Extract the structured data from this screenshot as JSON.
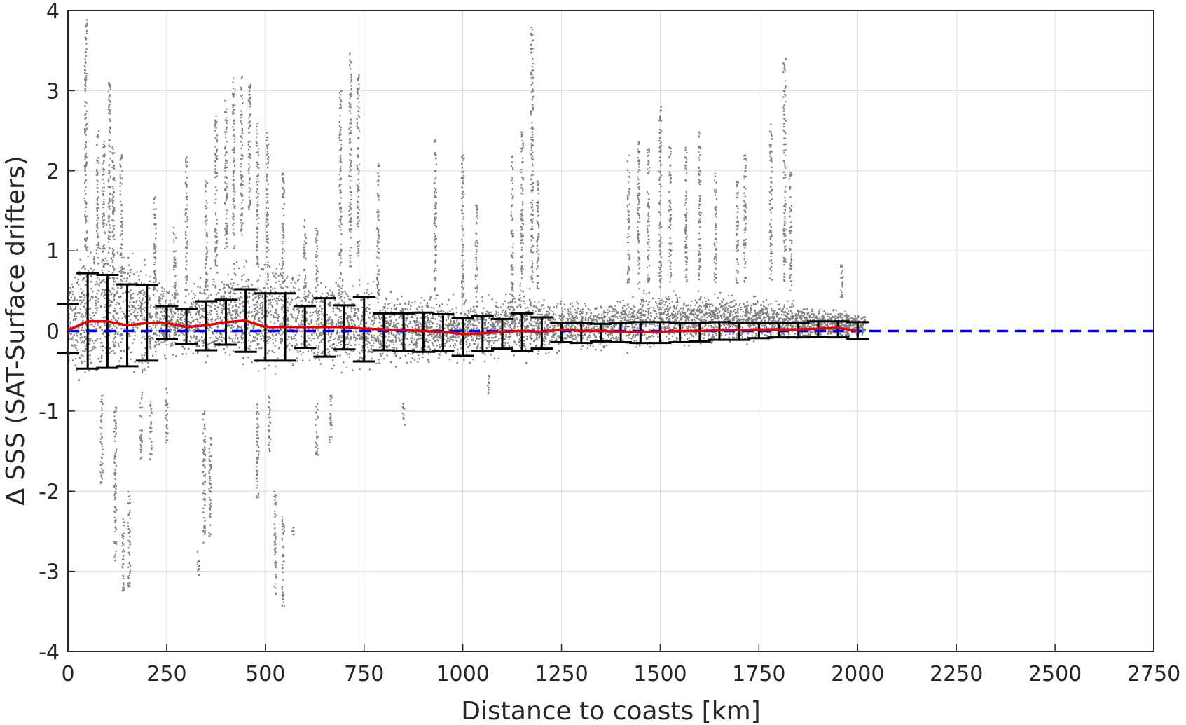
{
  "chart_data": {
    "type": "scatter",
    "xlabel": "Distance to coasts [km]",
    "ylabel": "Δ SSS (SAT-Surface drifters)",
    "xlim": [
      0,
      2750
    ],
    "ylim": [
      -4,
      4
    ],
    "x_ticks": [
      "0",
      "250",
      "500",
      "750",
      "1000",
      "1250",
      "1500",
      "1750",
      "2000",
      "2250",
      "2500",
      "2750"
    ],
    "y_ticks": [
      "4",
      "3",
      "2",
      "1",
      "0",
      "-1",
      "-2",
      "-3",
      "-4"
    ],
    "grid": true,
    "colors": {
      "scatter": "#808080",
      "errorbar": "#000000",
      "mean_line": "#e00000",
      "zero_line": "#0000e6",
      "grid": "#dcdcdc",
      "axes": "#262626"
    },
    "series": [
      {
        "kind": "errorbar",
        "x": [
          0,
          50,
          100,
          150,
          200,
          250,
          300,
          350,
          400,
          450,
          500,
          550,
          600,
          650,
          700,
          750,
          800,
          850,
          900,
          950,
          1000,
          1050,
          1100,
          1150,
          1200,
          1250,
          1300,
          1350,
          1400,
          1450,
          1500,
          1550,
          1600,
          1650,
          1700,
          1750,
          1800,
          1850,
          1900,
          1950,
          2000
        ],
        "mean": [
          0.01,
          0.12,
          0.12,
          0.07,
          0.1,
          0.1,
          0.05,
          0.07,
          0.11,
          0.13,
          0.05,
          0.05,
          0.05,
          0.05,
          0.05,
          0.03,
          0.02,
          0.01,
          0.0,
          -0.01,
          -0.04,
          -0.03,
          -0.01,
          0.0,
          -0.01,
          0.02,
          0.0,
          0.0,
          -0.01,
          -0.01,
          -0.01,
          0.0,
          0.0,
          0.01,
          0.01,
          0.02,
          0.02,
          0.02,
          0.03,
          0.04,
          0.0
        ],
        "upper": [
          0.34,
          0.72,
          0.7,
          0.58,
          0.57,
          0.31,
          0.28,
          0.37,
          0.39,
          0.52,
          0.47,
          0.47,
          0.31,
          0.41,
          0.32,
          0.42,
          0.22,
          0.22,
          0.23,
          0.21,
          0.16,
          0.19,
          0.15,
          0.22,
          0.17,
          0.1,
          0.1,
          0.09,
          0.1,
          0.11,
          0.11,
          0.1,
          0.1,
          0.11,
          0.1,
          0.1,
          0.1,
          0.1,
          0.12,
          0.12,
          0.11
        ],
        "lower": [
          -0.28,
          -0.47,
          -0.46,
          -0.44,
          -0.37,
          -0.1,
          -0.16,
          -0.24,
          -0.17,
          -0.26,
          -0.37,
          -0.37,
          -0.21,
          -0.32,
          -0.23,
          -0.38,
          -0.24,
          -0.25,
          -0.26,
          -0.25,
          -0.31,
          -0.25,
          -0.22,
          -0.25,
          -0.22,
          -0.14,
          -0.15,
          -0.13,
          -0.14,
          -0.15,
          -0.15,
          -0.14,
          -0.13,
          -0.11,
          -0.11,
          -0.09,
          -0.08,
          -0.08,
          -0.07,
          -0.08,
          -0.1
        ]
      },
      {
        "kind": "line",
        "style": "dashed",
        "x": [
          0,
          2750
        ],
        "y": [
          0,
          0
        ]
      }
    ],
    "scatter_spread": {
      "x": [
        0,
        50,
        100,
        150,
        200,
        250,
        300,
        350,
        400,
        450,
        500,
        550,
        600,
        650,
        700,
        750,
        800,
        850,
        900,
        950,
        1000,
        1050,
        1100,
        1150,
        1200,
        1250,
        1300,
        1350,
        1400,
        1450,
        1500,
        1550,
        1600,
        1650,
        1700,
        1750,
        1800,
        1850,
        1900,
        1950,
        2000
      ],
      "upper": [
        0.9,
        1.4,
        1.5,
        1.3,
        1.0,
        0.7,
        0.7,
        0.9,
        1.0,
        1.1,
        1.0,
        1.0,
        0.8,
        0.9,
        0.7,
        0.8,
        0.55,
        0.55,
        0.55,
        0.5,
        0.45,
        0.5,
        0.55,
        0.7,
        0.5,
        0.45,
        0.45,
        0.45,
        0.5,
        0.55,
        0.6,
        0.6,
        0.6,
        0.55,
        0.5,
        0.5,
        0.45,
        0.4,
        0.35,
        0.3,
        0.25
      ],
      "lower": [
        -0.6,
        -0.9,
        -0.9,
        -0.8,
        -0.7,
        -0.45,
        -0.5,
        -0.6,
        -0.55,
        -0.6,
        -0.7,
        -0.7,
        -0.55,
        -0.65,
        -0.55,
        -0.7,
        -0.5,
        -0.5,
        -0.5,
        -0.45,
        -0.5,
        -0.45,
        -0.4,
        -0.45,
        -0.4,
        -0.3,
        -0.3,
        -0.28,
        -0.3,
        -0.3,
        -0.3,
        -0.28,
        -0.25,
        -0.25,
        -0.22,
        -0.2,
        -0.18,
        -0.16,
        -0.15,
        -0.13,
        -0.12
      ],
      "streaks": [
        {
          "x": 45,
          "y0": 1.0,
          "y1": 3.9
        },
        {
          "x": 75,
          "y0": 0.9,
          "y1": 2.5
        },
        {
          "x": 90,
          "y0": 0.8,
          "y1": 2.4
        },
        {
          "x": 105,
          "y0": 0.9,
          "y1": 3.1
        },
        {
          "x": 115,
          "y0": 0.5,
          "y1": 2.3
        },
        {
          "x": 135,
          "y0": 0.5,
          "y1": 2.2
        },
        {
          "x": 220,
          "y0": 0.5,
          "y1": 1.7
        },
        {
          "x": 270,
          "y0": 0.4,
          "y1": 1.3
        },
        {
          "x": 300,
          "y0": 0.6,
          "y1": 2.2
        },
        {
          "x": 350,
          "y0": 0.5,
          "y1": 1.9
        },
        {
          "x": 375,
          "y0": 0.8,
          "y1": 2.7
        },
        {
          "x": 400,
          "y0": 1.0,
          "y1": 2.9
        },
        {
          "x": 420,
          "y0": 1.0,
          "y1": 3.2
        },
        {
          "x": 440,
          "y0": 1.2,
          "y1": 3.2
        },
        {
          "x": 460,
          "y0": 1.5,
          "y1": 3.15
        },
        {
          "x": 480,
          "y0": 0.8,
          "y1": 2.6
        },
        {
          "x": 505,
          "y0": 0.6,
          "y1": 2.5
        },
        {
          "x": 545,
          "y0": 0.5,
          "y1": 2.0
        },
        {
          "x": 600,
          "y0": 0.4,
          "y1": 1.4
        },
        {
          "x": 630,
          "y0": 0.5,
          "y1": 1.3
        },
        {
          "x": 690,
          "y0": 0.4,
          "y1": 3.0
        },
        {
          "x": 715,
          "y0": 0.8,
          "y1": 3.5
        },
        {
          "x": 735,
          "y0": 0.9,
          "y1": 3.2
        },
        {
          "x": 785,
          "y0": 0.4,
          "y1": 2.1
        },
        {
          "x": 930,
          "y0": 0.4,
          "y1": 2.4
        },
        {
          "x": 1000,
          "y0": 0.4,
          "y1": 2.2
        },
        {
          "x": 1035,
          "y0": 0.4,
          "y1": 1.6
        },
        {
          "x": 1125,
          "y0": 0.5,
          "y1": 2.2
        },
        {
          "x": 1150,
          "y0": 0.5,
          "y1": 2.5
        },
        {
          "x": 1175,
          "y0": 0.6,
          "y1": 3.8
        },
        {
          "x": 1190,
          "y0": 0.5,
          "y1": 1.9
        },
        {
          "x": 1420,
          "y0": 0.6,
          "y1": 2.2
        },
        {
          "x": 1445,
          "y0": 0.5,
          "y1": 2.4
        },
        {
          "x": 1470,
          "y0": 0.6,
          "y1": 2.3
        },
        {
          "x": 1500,
          "y0": 0.6,
          "y1": 2.8
        },
        {
          "x": 1525,
          "y0": 0.6,
          "y1": 2.3
        },
        {
          "x": 1565,
          "y0": 0.6,
          "y1": 2.3
        },
        {
          "x": 1600,
          "y0": 0.6,
          "y1": 2.5
        },
        {
          "x": 1640,
          "y0": 0.6,
          "y1": 2.0
        },
        {
          "x": 1695,
          "y0": 0.6,
          "y1": 1.9
        },
        {
          "x": 1715,
          "y0": 0.6,
          "y1": 2.2
        },
        {
          "x": 1780,
          "y0": 0.6,
          "y1": 2.6
        },
        {
          "x": 1815,
          "y0": 0.6,
          "y1": 3.4
        },
        {
          "x": 1830,
          "y0": 0.5,
          "y1": 2.0
        },
        {
          "x": 1960,
          "y0": 0.4,
          "y1": 0.9
        },
        {
          "x": 120,
          "y0": -2.9,
          "y1": -0.9
        },
        {
          "x": 140,
          "y0": -3.25,
          "y1": -2.3
        },
        {
          "x": 155,
          "y0": -3.2,
          "y1": -2.0
        },
        {
          "x": 185,
          "y0": -1.6,
          "y1": -0.7
        },
        {
          "x": 210,
          "y0": -1.6,
          "y1": -0.8
        },
        {
          "x": 250,
          "y0": -1.4,
          "y1": -0.7
        },
        {
          "x": 330,
          "y0": -3.05,
          "y1": -2.75
        },
        {
          "x": 345,
          "y0": -2.7,
          "y1": -1.0
        },
        {
          "x": 360,
          "y0": -2.6,
          "y1": -1.3
        },
        {
          "x": 480,
          "y0": -2.2,
          "y1": -0.9
        },
        {
          "x": 510,
          "y0": -1.5,
          "y1": -0.8
        },
        {
          "x": 525,
          "y0": -3.3,
          "y1": -2.0
        },
        {
          "x": 545,
          "y0": -3.45,
          "y1": -2.3
        },
        {
          "x": 570,
          "y0": -2.55,
          "y1": -2.45
        },
        {
          "x": 630,
          "y0": -1.55,
          "y1": -0.9
        },
        {
          "x": 665,
          "y0": -1.4,
          "y1": -0.8
        },
        {
          "x": 85,
          "y0": -1.9,
          "y1": -0.8
        },
        {
          "x": 850,
          "y0": -1.2,
          "y1": -0.9
        },
        {
          "x": 1065,
          "y0": -0.8,
          "y1": -0.5
        }
      ]
    }
  }
}
